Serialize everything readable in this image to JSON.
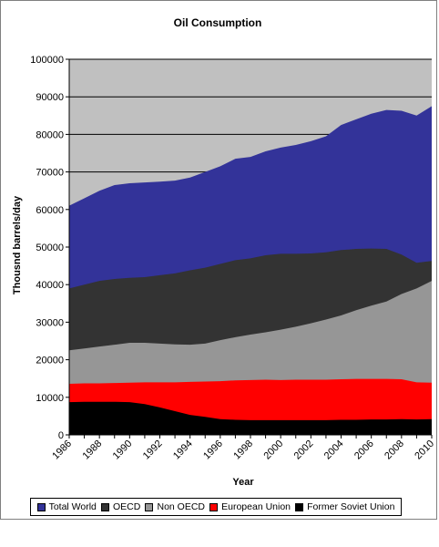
{
  "chart_data": {
    "type": "area",
    "title": "Oil Consumption",
    "xlabel": "Year",
    "ylabel": "Thousnd barrels/day",
    "x": [
      1986,
      1987,
      1988,
      1989,
      1990,
      1991,
      1992,
      1993,
      1994,
      1995,
      1996,
      1997,
      1998,
      1999,
      2000,
      2001,
      2002,
      2003,
      2004,
      2005,
      2006,
      2007,
      2008,
      2009,
      2010
    ],
    "xticks": [
      1986,
      1988,
      1990,
      1992,
      1994,
      1996,
      1998,
      2000,
      2002,
      2004,
      2006,
      2008,
      2010
    ],
    "yticks": [
      0,
      10000,
      20000,
      30000,
      40000,
      50000,
      60000,
      70000,
      80000,
      90000,
      100000
    ],
    "ylim": [
      0,
      100000
    ],
    "grid": "horizontal",
    "legend_position": "bottom",
    "plot_background": "#c0c0c0",
    "series": [
      {
        "name": "Total World",
        "color": "#333399",
        "values": [
          61000,
          63000,
          65000,
          66500,
          67000,
          67200,
          67400,
          67700,
          68500,
          70000,
          71500,
          73500,
          74000,
          75500,
          76500,
          77200,
          78200,
          79500,
          82500,
          84000,
          85500,
          86500,
          86300,
          85000,
          87500
        ]
      },
      {
        "name": "OECD",
        "color": "#333333",
        "values": [
          39000,
          40000,
          41000,
          41500,
          41800,
          42000,
          42500,
          43000,
          43800,
          44500,
          45500,
          46500,
          47000,
          47800,
          48200,
          48200,
          48300,
          48600,
          49200,
          49500,
          49600,
          49500,
          48000,
          45800,
          46300
        ]
      },
      {
        "name": "Non OECD",
        "color": "#969696",
        "values": [
          22500,
          23000,
          23500,
          24000,
          24500,
          24500,
          24300,
          24100,
          24000,
          24300,
          25200,
          26000,
          26700,
          27300,
          28000,
          28800,
          29700,
          30700,
          31800,
          33200,
          34400,
          35500,
          37500,
          39000,
          41000
        ]
      },
      {
        "name": "European Union",
        "color": "#ff0000",
        "values": [
          13600,
          13700,
          13700,
          13800,
          13900,
          14000,
          14000,
          14000,
          14100,
          14200,
          14300,
          14500,
          14600,
          14700,
          14600,
          14700,
          14700,
          14700,
          14800,
          14900,
          14900,
          14900,
          14800,
          14000,
          13900
        ]
      },
      {
        "name": "Former Soviet Union",
        "color": "#000000",
        "values": [
          8700,
          8800,
          8800,
          8800,
          8700,
          8200,
          7300,
          6300,
          5300,
          4800,
          4200,
          4000,
          3900,
          3900,
          3900,
          3900,
          3900,
          3900,
          4000,
          4000,
          4100,
          4100,
          4200,
          4100,
          4200
        ]
      }
    ]
  }
}
